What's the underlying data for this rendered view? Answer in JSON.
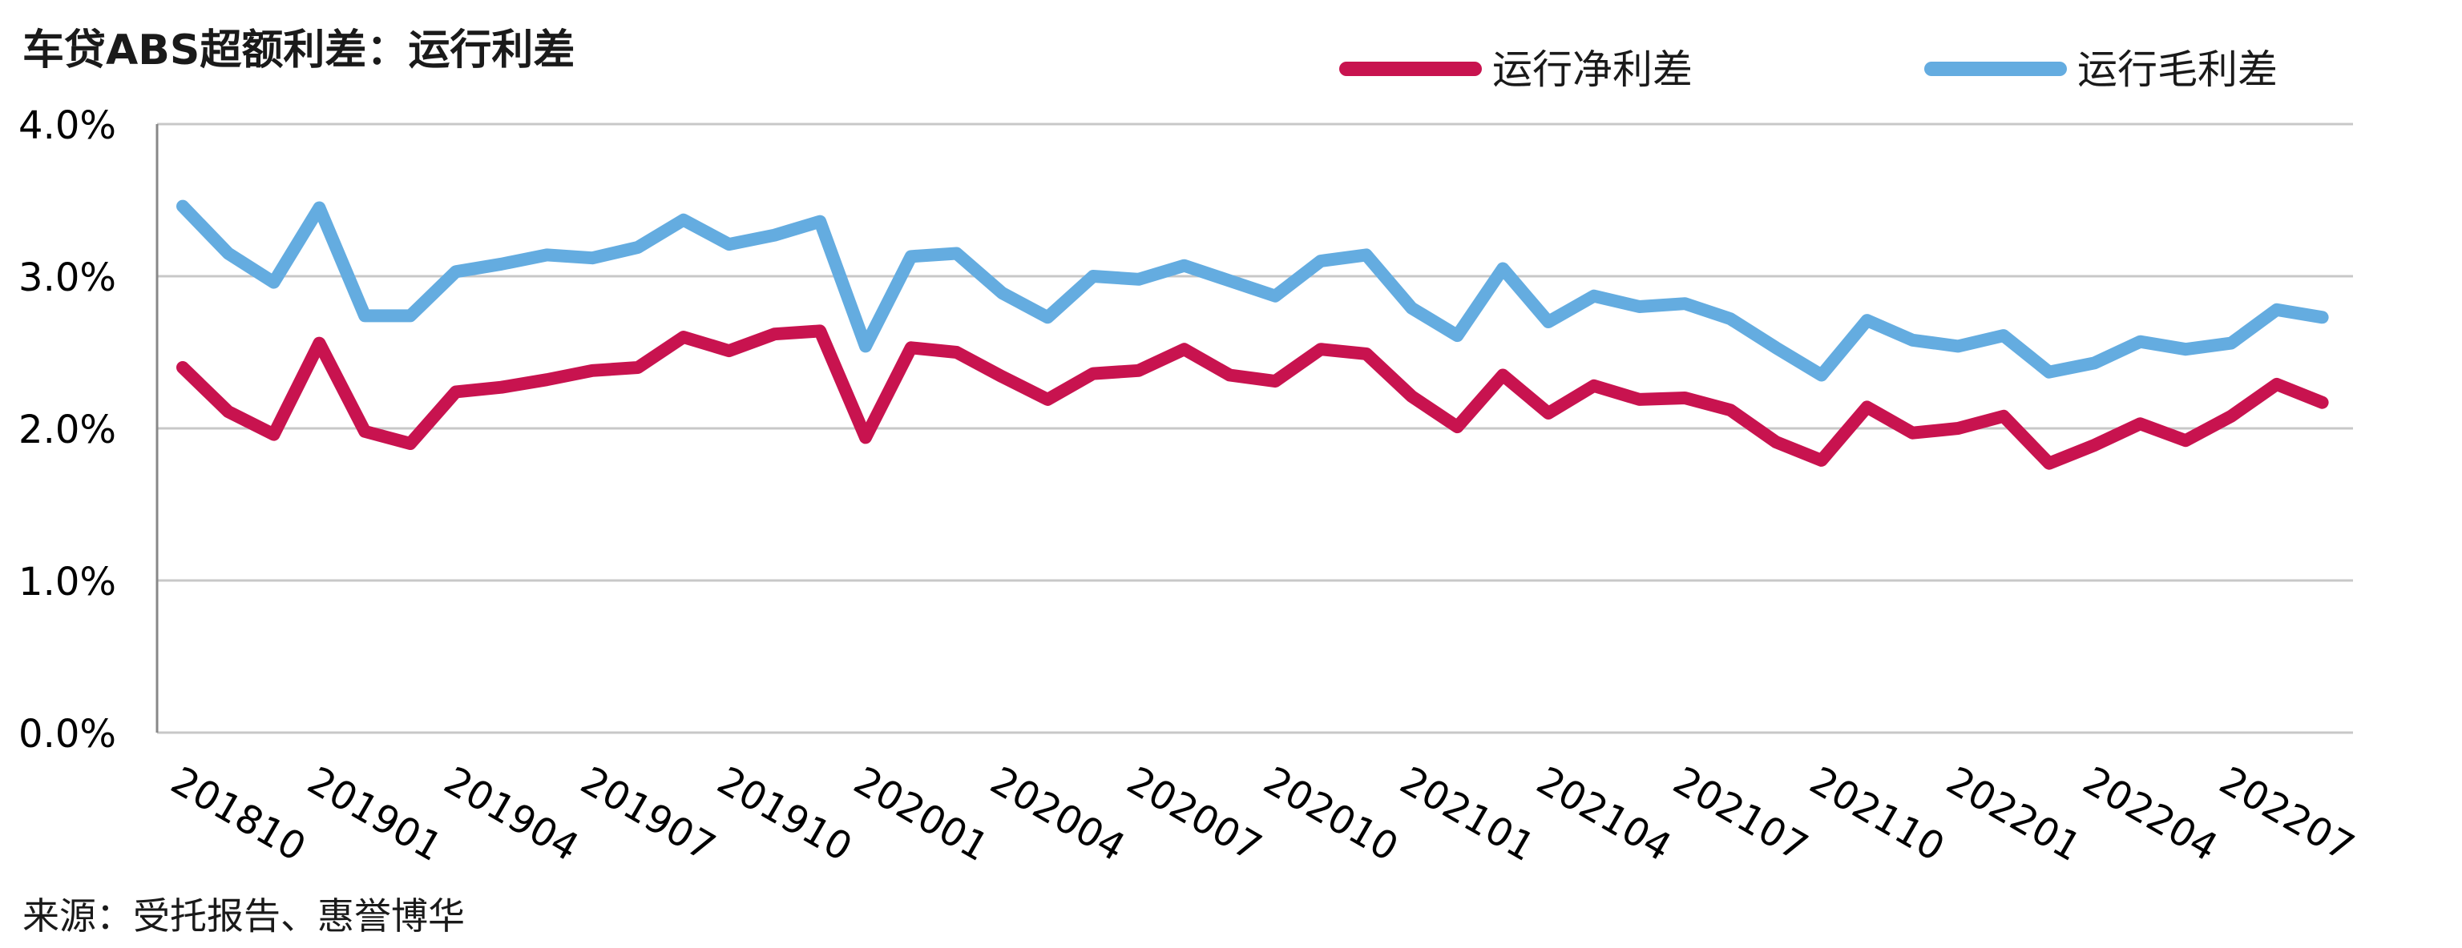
{
  "chart_data": {
    "type": "line",
    "title": "车贷ABS超额利差：运行利差",
    "source": "来源：受托报告、惠誉博华",
    "ylim": [
      0,
      4
    ],
    "yticks": [
      "0.0%",
      "1.0%",
      "2.0%",
      "3.0%",
      "4.0%"
    ],
    "ytick_values": [
      0,
      1,
      2,
      3,
      4
    ],
    "grid": true,
    "legend_position": "top-right",
    "x": [
      "201810",
      "201811",
      "201812",
      "201901",
      "201902",
      "201903",
      "201904",
      "201905",
      "201906",
      "201907",
      "201908",
      "201909",
      "201910",
      "201911",
      "201912",
      "202001",
      "202002",
      "202003",
      "202004",
      "202005",
      "202006",
      "202007",
      "202008",
      "202009",
      "202010",
      "202011",
      "202012",
      "202101",
      "202102",
      "202103",
      "202104",
      "202105",
      "202106",
      "202107",
      "202108",
      "202109",
      "202110",
      "202111",
      "202112",
      "202201",
      "202202",
      "202203",
      "202204",
      "202205",
      "202206",
      "202207",
      "202208",
      "202209"
    ],
    "xtick_labels": [
      "201810",
      "201901",
      "201904",
      "201907",
      "201910",
      "202001",
      "202004",
      "202007",
      "202010",
      "202101",
      "202104",
      "202107",
      "202110",
      "202201",
      "202204",
      "202207"
    ],
    "series": [
      {
        "name": "运行净利差",
        "color": "#C8134F",
        "values": [
          2.4,
          2.11,
          1.96,
          2.56,
          1.98,
          1.9,
          2.24,
          2.27,
          2.32,
          2.38,
          2.4,
          2.6,
          2.51,
          2.62,
          2.64,
          1.94,
          2.53,
          2.5,
          2.34,
          2.19,
          2.36,
          2.38,
          2.52,
          2.35,
          2.31,
          2.52,
          2.49,
          2.21,
          2.01,
          2.35,
          2.1,
          2.28,
          2.19,
          2.2,
          2.12,
          1.91,
          1.79,
          2.14,
          1.97,
          2.0,
          2.08,
          1.77,
          1.89,
          2.03,
          1.92,
          2.08,
          2.29,
          2.17
        ]
      },
      {
        "name": "运行毛利差",
        "color": "#64ACE0",
        "values": [
          3.46,
          3.15,
          2.96,
          3.45,
          2.74,
          2.74,
          3.03,
          3.08,
          3.14,
          3.12,
          3.19,
          3.37,
          3.21,
          3.27,
          3.36,
          2.54,
          3.13,
          3.15,
          2.89,
          2.73,
          3.0,
          2.98,
          3.07,
          2.97,
          2.87,
          3.1,
          3.14,
          2.79,
          2.61,
          3.05,
          2.7,
          2.87,
          2.8,
          2.82,
          2.72,
          2.53,
          2.35,
          2.71,
          2.58,
          2.54,
          2.61,
          2.37,
          2.43,
          2.57,
          2.52,
          2.56,
          2.78,
          2.73
        ]
      }
    ]
  }
}
